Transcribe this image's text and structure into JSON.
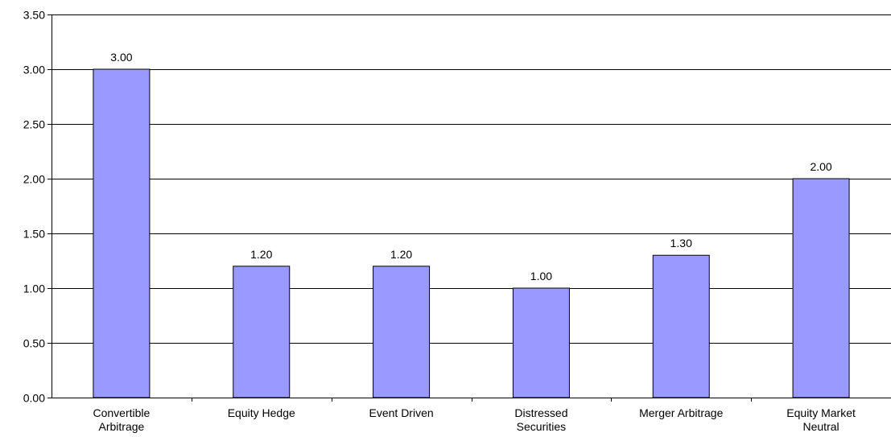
{
  "chart_data": {
    "type": "bar",
    "categories": [
      [
        "Convertible",
        "Arbitrage"
      ],
      [
        "Equity Hedge"
      ],
      [
        "Event Driven"
      ],
      [
        "Distressed",
        "Securities"
      ],
      [
        "Merger Arbitrage"
      ],
      [
        "Equity Market",
        "Neutral"
      ]
    ],
    "values": [
      3.0,
      1.2,
      1.2,
      1.0,
      1.3,
      2.0
    ],
    "value_labels": [
      "3.00",
      "1.20",
      "1.20",
      "1.00",
      "1.30",
      "2.00"
    ],
    "yticks": [
      0,
      0.5,
      1.0,
      1.5,
      2.0,
      2.5,
      3.0,
      3.5
    ],
    "ytick_labels": [
      "0.00",
      "0.50",
      "1.00",
      "1.50",
      "2.00",
      "2.50",
      "3.00",
      "3.50"
    ],
    "ylim": [
      0,
      3.5
    ],
    "title": "",
    "xlabel": "",
    "ylabel": "",
    "grid": true,
    "legend": "none",
    "colors": {
      "bar_fill": "#9999ff",
      "bar_stroke": "#000000",
      "grid": "#000000",
      "axis": "#000000",
      "background": "#ffffff"
    }
  }
}
